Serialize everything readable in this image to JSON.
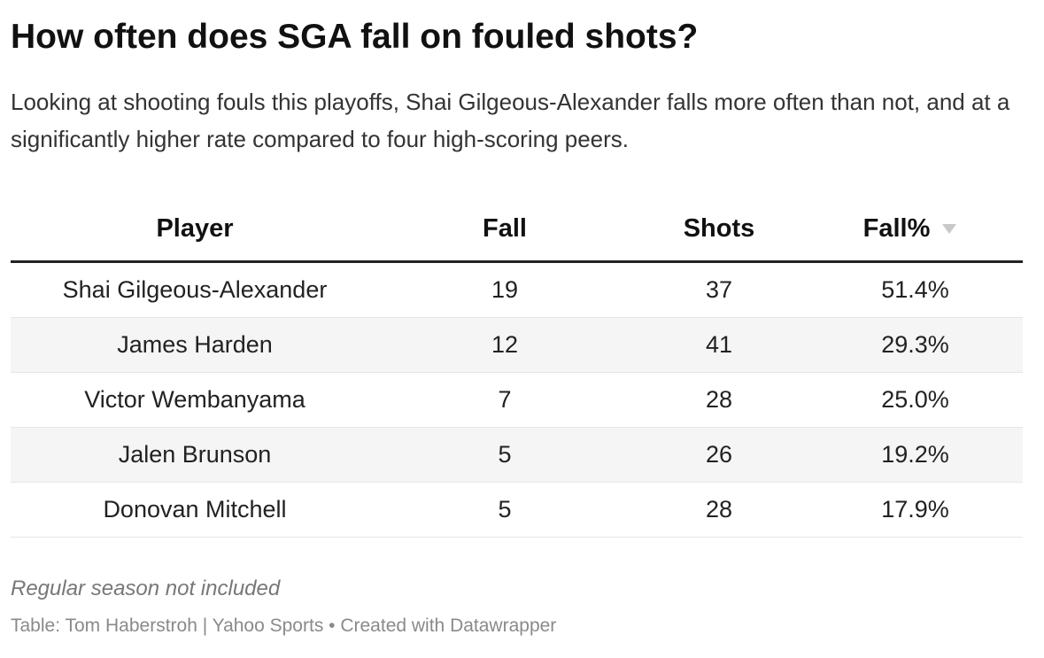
{
  "header": {
    "title": "How often does SGA fall on fouled shots?",
    "subtitle": "Looking at shooting fouls this playoffs, Shai Gilgeous-Alexander falls more often than not, and at a significantly higher rate compared to four high-scoring peers."
  },
  "table": {
    "columns": [
      "Player",
      "Fall",
      "Shots",
      "Fall%"
    ],
    "rows": [
      [
        "Shai Gilgeous-Alexander",
        "19",
        "37",
        "51.4%"
      ],
      [
        "James Harden",
        "12",
        "41",
        "29.3%"
      ],
      [
        "Victor Wembanyama",
        "7",
        "28",
        "25.0%"
      ],
      [
        "Jalen Brunson",
        "5",
        "26",
        "19.2%"
      ],
      [
        "Donovan Mitchell",
        "5",
        "28",
        "17.9%"
      ]
    ]
  },
  "footer": {
    "note": "Regular season not included",
    "source": "Table: Tom Haberstroh | Yahoo Sports • Created with Datawrapper"
  }
}
